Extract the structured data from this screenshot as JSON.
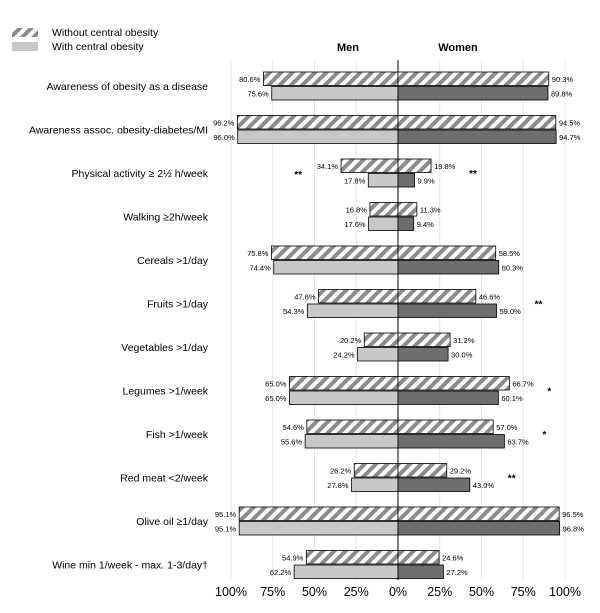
{
  "chart_data": {
    "type": "bar",
    "orientation": "horizontal-butterfly",
    "legend": {
      "placement": "top-left",
      "items": [
        "Without central obesity",
        "With central obesity"
      ]
    },
    "panels": [
      "Men",
      "Women"
    ],
    "xlim": [
      0,
      100
    ],
    "x_ticks": [
      "100%",
      "75%",
      "50%",
      "25%",
      "0%",
      "25%",
      "50%",
      "75%",
      "100%"
    ],
    "categories": [
      "Awareness of obesity as a disease",
      "Awareness assoc. obesity-diabetes/MI",
      "Physical activity ≥ 2½ h/week",
      "Walking ≥2h/week",
      "Cereals >1/day",
      "Fruits >1/day",
      "Vegetables >1/day",
      "Legumes >1/week",
      "Fish >1/week",
      "Red meat <2/week",
      "Olive oil ≥1/day",
      "Wine min 1/week - max. 1-3/day†"
    ],
    "series": [
      {
        "name": "Without central obesity",
        "men": [
          80.6,
          96.2,
          34.1,
          16.8,
          75.8,
          47.6,
          20.2,
          65.0,
          54.6,
          26.2,
          95.1,
          54.9
        ],
        "women": [
          90.3,
          94.5,
          19.8,
          11.3,
          58.5,
          46.6,
          31.2,
          66.7,
          57.0,
          29.2,
          96.5,
          24.6
        ],
        "men_labels": [
          "80.6%",
          "96.2%",
          "34.1%",
          "16.8%",
          "75.8%",
          "47.6%",
          "20.2%",
          "65.0%",
          "54.6%",
          "26.2%",
          "95.1%",
          "54.9%"
        ],
        "women_labels": [
          "90.3%",
          "94.5%",
          "19.8%",
          "11.3%",
          "58.5%",
          "46.6%",
          "31.2%",
          "66.7%",
          "57.0%",
          "29.2%",
          "96.5%",
          "24.6%"
        ]
      },
      {
        "name": "With central obesity",
        "men": [
          75.6,
          96.0,
          17.8,
          17.6,
          74.4,
          54.3,
          24.2,
          65.0,
          55.6,
          27.8,
          95.1,
          62.2
        ],
        "women": [
          89.8,
          94.7,
          9.9,
          9.4,
          60.3,
          59.0,
          30.0,
          60.1,
          63.7,
          43.0,
          96.8,
          27.2
        ],
        "men_labels": [
          "75.6%",
          "96.0%",
          "17.8%",
          "17.6%",
          "74.4%",
          "54.3%",
          "24.2%",
          "65.0%",
          "55.6%",
          "27.8%",
          "95.1%",
          "62.2%"
        ],
        "women_labels": [
          "89.8%",
          "94.7%",
          "9.9%",
          "9.4%",
          "60.3%",
          "59.0%",
          "30.0%",
          "60.1%",
          "63.7%",
          "43.0%",
          "96.8%",
          "27.2%"
        ]
      }
    ],
    "significance": {
      "men": [
        "",
        "",
        "**",
        "",
        "",
        "",
        "",
        "",
        "",
        "",
        "",
        ""
      ],
      "women": [
        "",
        "",
        "**",
        "",
        "",
        "**",
        "",
        "*",
        "*",
        "**",
        "",
        ""
      ]
    },
    "colors": {
      "men_solid": "#c8c8c8",
      "women_solid": "#6e6e6e",
      "hatch": "#8c8c8c",
      "grid": "#e4e4e4"
    }
  }
}
